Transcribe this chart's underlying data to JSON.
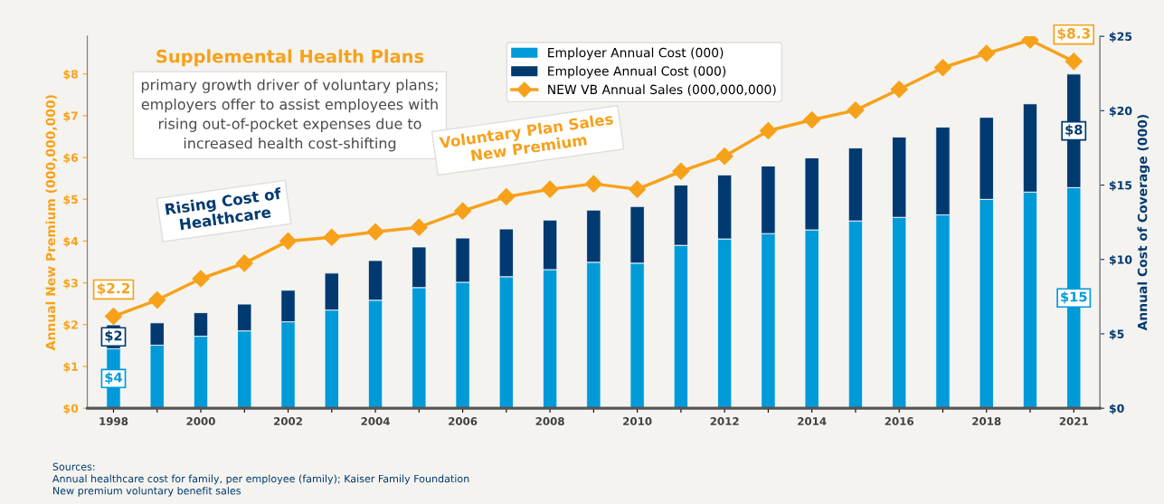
{
  "chart_data": {
    "type": "bar",
    "stacked": true,
    "title": "Supplemental Health Plans",
    "subtitle": "primary growth driver of voluntary plans;\nemployers offer to assist employees with\nrising out-of-pocket expenses due to\nincreased health cost-shifting",
    "ylabel": "Annual New Premium (000,000,000)",
    "y2label": "Annual Cost of Coverage (000)",
    "categories": [
      "1998",
      null,
      "2000",
      null,
      "2002",
      null,
      "2004",
      null,
      "2006",
      null,
      "2008",
      null,
      "2010",
      null,
      "2012",
      null,
      "2014",
      null,
      "2016",
      null,
      "2018",
      null,
      "2021"
    ],
    "series": [
      {
        "name": "Employer Annual Cost (000)",
        "color": "#009ad9",
        "axis": "y2",
        "values": [
          4.0,
          4.24,
          4.84,
          5.2,
          5.81,
          6.6,
          7.26,
          8.11,
          8.47,
          8.84,
          9.32,
          9.81,
          9.75,
          10.95,
          11.38,
          11.74,
          11.99,
          12.59,
          12.83,
          13.0,
          14.04,
          14.53,
          14.83
        ],
        "value_labels": [
          "$4",
          null,
          null,
          null,
          null,
          null,
          null,
          null,
          null,
          null,
          null,
          null,
          null,
          null,
          null,
          null,
          null,
          null,
          null,
          null,
          null,
          null,
          "$15"
        ]
      },
      {
        "name": "Employee Annual Cost (000)",
        "color": "#003a70",
        "axis": "y2",
        "values": [
          1.6,
          1.5,
          1.58,
          1.8,
          2.12,
          2.48,
          2.67,
          2.73,
          2.97,
          3.21,
          3.33,
          3.51,
          3.81,
          4.05,
          4.3,
          4.54,
          4.84,
          4.9,
          5.4,
          5.9,
          5.51,
          5.93,
          7.63
        ],
        "value_labels": [
          "$2",
          null,
          null,
          null,
          null,
          null,
          null,
          null,
          null,
          null,
          null,
          null,
          null,
          null,
          null,
          null,
          null,
          null,
          null,
          null,
          null,
          null,
          "$8"
        ]
      },
      {
        "name": "NEW VB Annual Sales (000,000,000)",
        "type": "line",
        "color": "#f7a11a",
        "axis": "y",
        "marker": "diamond",
        "values": [
          2.2,
          2.59,
          3.1,
          3.47,
          4.0,
          4.09,
          4.22,
          4.33,
          4.72,
          5.06,
          5.24,
          5.37,
          5.24,
          5.67,
          6.03,
          6.64,
          6.9,
          7.13,
          7.63,
          8.15,
          8.49,
          8.81,
          8.3
        ],
        "value_labels": [
          "$2.2",
          null,
          null,
          null,
          null,
          null,
          null,
          null,
          null,
          null,
          null,
          null,
          null,
          null,
          null,
          null,
          null,
          null,
          null,
          null,
          null,
          null,
          "$8.3"
        ]
      }
    ],
    "ylim": [
      0,
      8.9
    ],
    "yticks": [
      {
        "value": 0,
        "label": "$0"
      },
      {
        "value": 1,
        "label": "$1"
      },
      {
        "value": 2,
        "label": "$2"
      },
      {
        "value": 3,
        "label": "$3"
      },
      {
        "value": 4,
        "label": "$4"
      },
      {
        "value": 5,
        "label": "$5"
      },
      {
        "value": 6,
        "label": "$6"
      },
      {
        "value": 7,
        "label": "$7"
      },
      {
        "value": 8,
        "label": "$8"
      }
    ],
    "y2lim": [
      0,
      25
    ],
    "y2ticks": [
      {
        "value": 0,
        "label": "$0"
      },
      {
        "value": 5,
        "label": "$5"
      },
      {
        "value": 10,
        "label": "$10"
      },
      {
        "value": 15,
        "label": "$15"
      },
      {
        "value": 20,
        "label": "$20"
      },
      {
        "value": 25,
        "label": "$25"
      }
    ],
    "annotations": [
      "Voluntary Plan Sales\nNew Premium",
      "Rising Cost of\nHealthcare",
      "Sources:\nAnnual healthcare cost for family, per employee (family); Kaiser Family Foundation\nNew premium voluntary benefit sales"
    ],
    "legend": "top",
    "grid": false
  }
}
